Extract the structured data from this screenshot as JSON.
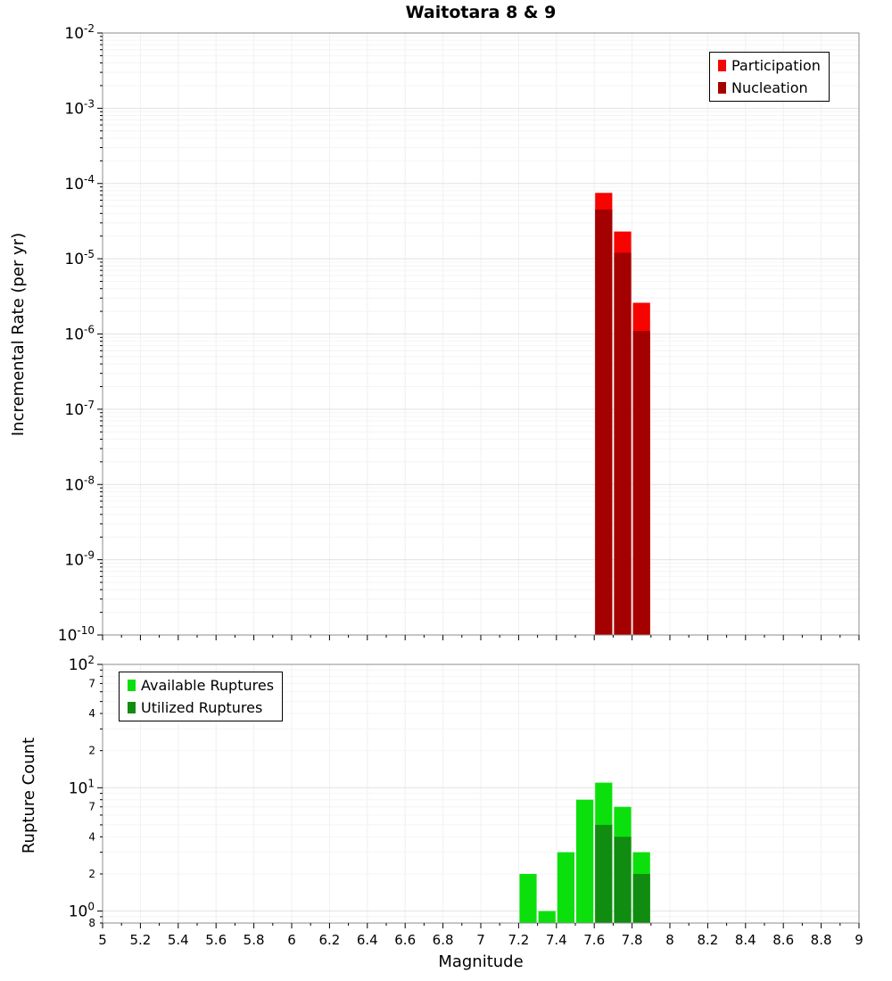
{
  "title": "Waitotara 8 & 9",
  "xlabel": "Magnitude",
  "chart_data": [
    {
      "type": "bar",
      "panel": "top",
      "title": "Waitotara 8 & 9",
      "ylabel": "Incremental Rate (per yr)",
      "xlabel": "Magnitude",
      "xlim": [
        5,
        9
      ],
      "x_tick_step": 0.2,
      "yscale": "log",
      "ylim": [
        1e-10,
        0.01
      ],
      "y_tick_labels": [
        "10^-2",
        "10^-3",
        "10^-4",
        "10^-5",
        "10^-6",
        "10^-7",
        "10^-8",
        "10^-9",
        "10^-10"
      ],
      "bin_width": 0.1,
      "grid": true,
      "legend_position": "top-right",
      "series": [
        {
          "name": "Participation",
          "color": "#f50400",
          "x": [
            7.65,
            7.75,
            7.85
          ],
          "values": [
            7.5e-05,
            2.3e-05,
            2.6e-06
          ]
        },
        {
          "name": "Nucleation",
          "color": "#a40000",
          "x": [
            7.65,
            7.75,
            7.85
          ],
          "values": [
            4.5e-05,
            1.2e-05,
            1.1e-06
          ]
        }
      ]
    },
    {
      "type": "bar",
      "panel": "bottom",
      "ylabel": "Rupture Count",
      "xlabel": "Magnitude",
      "xlim": [
        5,
        9
      ],
      "x_tick_step": 0.2,
      "yscale": "log",
      "ylim": [
        0.8,
        100
      ],
      "y_tick_labels": [
        "10^2",
        "7",
        "4",
        "2",
        "10^1",
        "7",
        "4",
        "2",
        "10^0",
        "8"
      ],
      "labeled_minors": [
        2,
        4,
        7,
        8
      ],
      "bin_width": 0.1,
      "grid": true,
      "legend_position": "top-left",
      "series": [
        {
          "name": "Available Ruptures",
          "color": "#0ce00c",
          "x": [
            7.25,
            7.35,
            7.45,
            7.55,
            7.65,
            7.75,
            7.85
          ],
          "values": [
            2,
            1,
            3,
            8,
            11,
            7,
            3
          ]
        },
        {
          "name": "Utilized Ruptures",
          "color": "#108c10",
          "x": [
            7.65,
            7.75,
            7.85
          ],
          "values": [
            5,
            4,
            2
          ]
        }
      ]
    }
  ]
}
